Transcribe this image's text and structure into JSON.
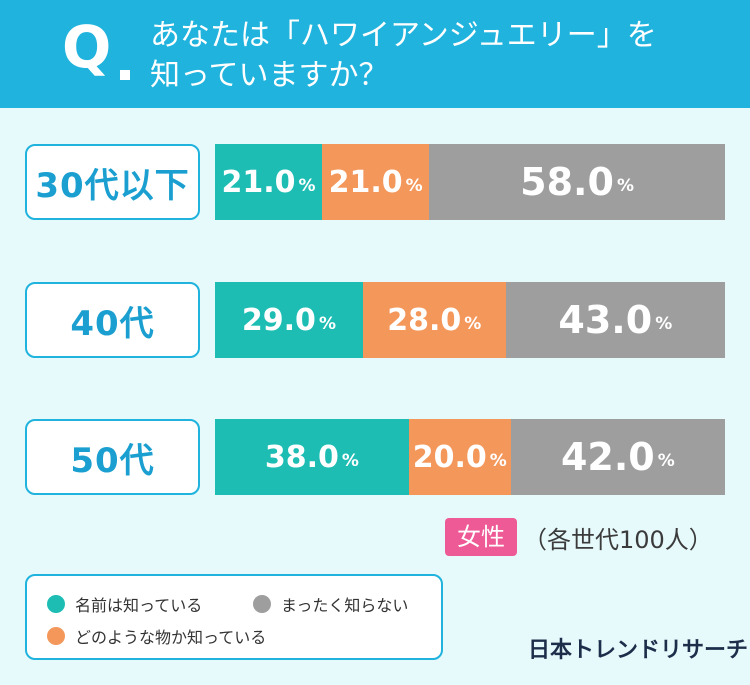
{
  "header": {
    "q_mark": "Q",
    "question_line1": "あなたは「ハワイアンジュエリー」を",
    "question_line2": "知っていますか？"
  },
  "colors": {
    "header_bg": "#1fb3dd",
    "know_name": "#1dbdb4",
    "know_item": "#f4975a",
    "dont_know": "#9e9e9e",
    "female_badge": "#ee5a95"
  },
  "chart_data": {
    "type": "bar",
    "stacked": true,
    "horizontal": true,
    "categories": [
      "30代以下",
      "40代",
      "50代"
    ],
    "series": [
      {
        "name": "名前は知っている",
        "values": [
          21.0,
          29.0,
          38.0
        ]
      },
      {
        "name": "どのような物か知っている",
        "values": [
          21.0,
          28.0,
          20.0
        ]
      },
      {
        "name": "まったく知らない",
        "values": [
          58.0,
          43.0,
          42.0
        ]
      }
    ],
    "unit": "%",
    "xlim": [
      0,
      100
    ]
  },
  "note": {
    "gender": "女性",
    "sample": "（各世代100人）"
  },
  "legend": {
    "items": [
      "名前は知っている",
      "まったく知らない",
      "どのような物か知っている"
    ]
  },
  "brand": "日本トレンドリサーチ"
}
